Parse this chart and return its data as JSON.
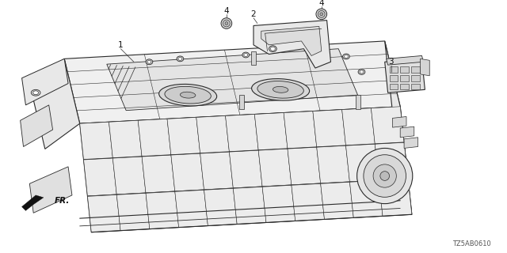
{
  "diagram_code": "TZ5AB0610",
  "background_color": "#ffffff",
  "line_color": "#2a2a2a",
  "figsize": [
    6.4,
    3.2
  ],
  "dpi": 100,
  "fr_label": "FR.",
  "labels": [
    {
      "text": "1",
      "ix": 148,
      "iy": 57
    },
    {
      "text": "2",
      "ix": 333,
      "iy": 13
    },
    {
      "text": "3",
      "ix": 498,
      "iy": 80
    },
    {
      "text": "4",
      "ix": 290,
      "iy": 12
    },
    {
      "text": "4",
      "ix": 408,
      "iy": 5
    }
  ]
}
